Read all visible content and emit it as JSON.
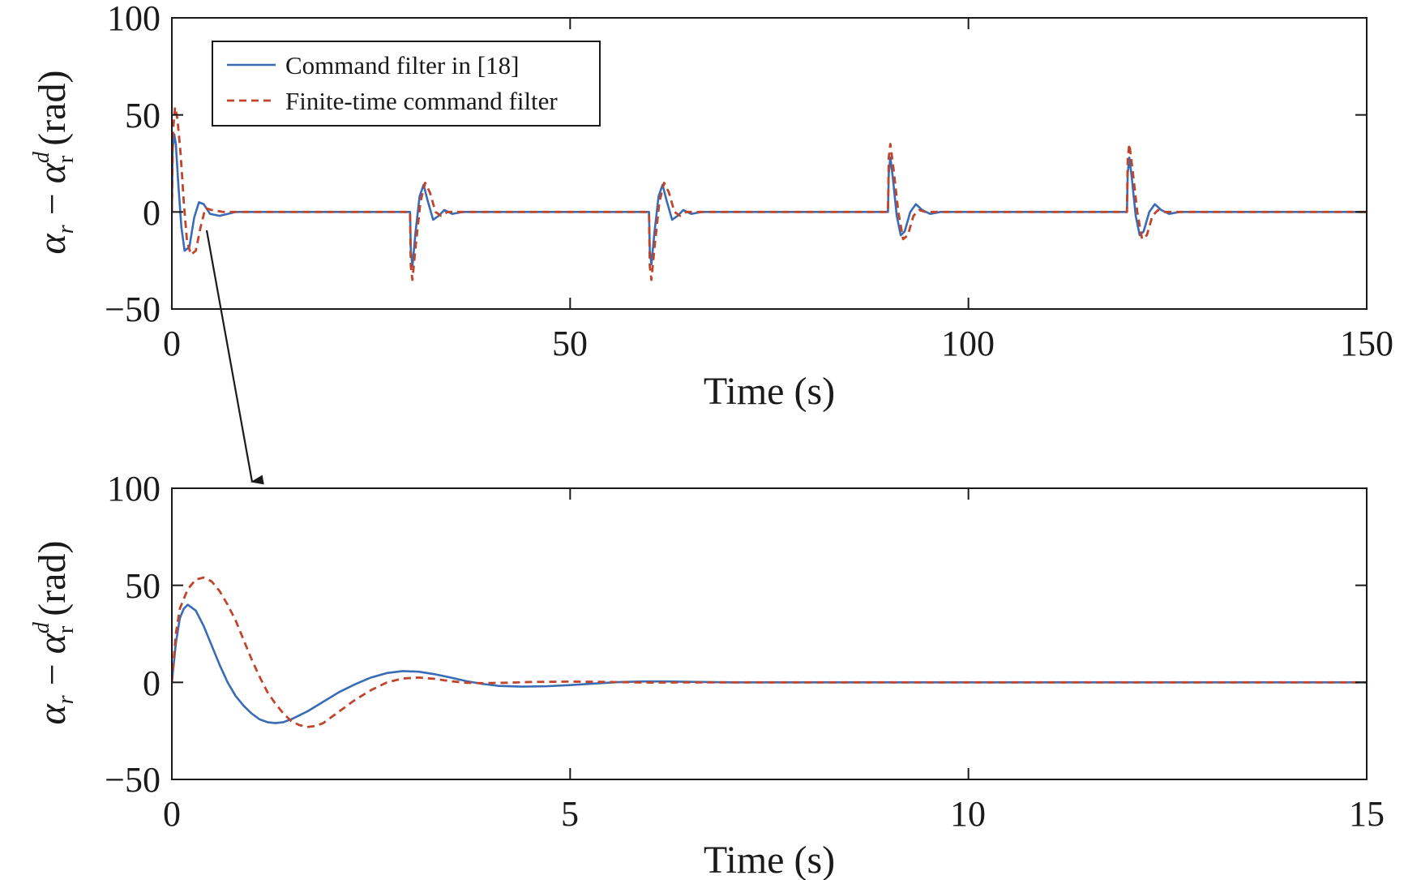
{
  "colors": {
    "series_1": "#3a6cb5",
    "series_2": "#c0452d",
    "axis": "#1a1a1a",
    "background": "#ffffff"
  },
  "chart_data": [
    {
      "type": "line",
      "xlabel": "Time (s)",
      "ylabel": {
        "symbol": "α",
        "sub1": "r",
        "minus": " − ",
        "sup": "d",
        "sub2": "r",
        "unit": " (rad)"
      },
      "xlim": [
        0,
        150
      ],
      "ylim": [
        -50,
        100
      ],
      "xticks": [
        0,
        50,
        100,
        150
      ],
      "xtick_labels": [
        "0",
        "50",
        "100",
        "150"
      ],
      "yticks": [
        -50,
        0,
        50,
        100
      ],
      "ytick_labels": [
        "−50",
        "0",
        "50",
        "100"
      ],
      "grid": false,
      "legend_position": "top-left",
      "series": [
        {
          "name": "Command filter in [18]",
          "style": "solid",
          "x": [
            0,
            0.1,
            0.3,
            0.5,
            0.8,
            1.2,
            1.6,
            2.2,
            2.8,
            3.4,
            4,
            4.8,
            6,
            8,
            29.9,
            30,
            30.2,
            30.6,
            31.1,
            31.6,
            32.1,
            32.8,
            33.5,
            34.2,
            35.2,
            36.5,
            38,
            59.9,
            60,
            60.2,
            60.6,
            61.1,
            61.6,
            62.1,
            62.8,
            63.5,
            64.2,
            65.2,
            66.5,
            68,
            89.9,
            90,
            90.2,
            90.5,
            91,
            91.5,
            92,
            92.7,
            93.4,
            94.2,
            95.2,
            96.5,
            98,
            119.9,
            120,
            120.2,
            120.5,
            121,
            121.5,
            122,
            122.7,
            123.4,
            124.2,
            125.2,
            126.5,
            128,
            150
          ],
          "y": [
            0,
            32,
            40,
            35,
            15,
            -8,
            -20,
            -18,
            -3,
            5,
            4,
            -1,
            -2,
            0,
            0,
            -20,
            -28,
            -10,
            8,
            14,
            6,
            -4,
            -2,
            1,
            -1,
            0,
            0,
            0,
            -20,
            -27,
            -10,
            8,
            14,
            6,
            -4,
            -2,
            1,
            -1,
            0,
            0,
            0,
            20,
            28,
            18,
            -2,
            -12,
            -10,
            0,
            4,
            1,
            -1,
            0,
            0,
            0,
            20,
            28,
            18,
            -2,
            -12,
            -10,
            0,
            4,
            1,
            -1,
            0,
            0,
            0
          ]
        },
        {
          "name": "Finite-time command filter",
          "style": "dashed",
          "x": [
            0,
            0.15,
            0.4,
            0.7,
            1.1,
            1.5,
            1.9,
            2.4,
            3,
            3.6,
            4.2,
            5,
            6.5,
            8,
            29.9,
            30,
            30.2,
            30.6,
            31.2,
            31.8,
            32.4,
            33.1,
            33.8,
            34.6,
            36,
            38,
            59.9,
            60,
            60.2,
            60.6,
            61.2,
            61.8,
            62.4,
            63.1,
            63.8,
            64.6,
            66,
            68,
            89.9,
            90,
            90.2,
            90.6,
            91.2,
            91.8,
            92.4,
            93.1,
            93.8,
            94.6,
            96,
            98,
            119.9,
            120,
            120.2,
            120.6,
            121.2,
            121.8,
            122.4,
            123.1,
            123.8,
            124.6,
            126,
            128,
            150
          ],
          "y": [
            0,
            42,
            54,
            48,
            30,
            5,
            -15,
            -22,
            -20,
            -8,
            2,
            1,
            0,
            0,
            0,
            -28,
            -35,
            -18,
            5,
            15,
            10,
            0,
            -2,
            0,
            0,
            0,
            0,
            -28,
            -35,
            -18,
            5,
            15,
            10,
            0,
            -2,
            0,
            0,
            0,
            0,
            28,
            35,
            22,
            0,
            -14,
            -12,
            -2,
            1,
            0,
            0,
            0,
            0,
            28,
            35,
            22,
            0,
            -14,
            -12,
            -2,
            1,
            0,
            0,
            0,
            0
          ]
        }
      ]
    },
    {
      "type": "line",
      "xlabel": "Time (s)",
      "ylabel": {
        "symbol": "α",
        "sub1": "r",
        "minus": " − ",
        "sup": "d",
        "sub2": "r",
        "unit": " (rad)"
      },
      "xlim": [
        0,
        15
      ],
      "ylim": [
        -50,
        100
      ],
      "xticks": [
        0,
        5,
        10,
        15
      ],
      "xtick_labels": [
        "0",
        "5",
        "10",
        "15"
      ],
      "yticks": [
        -50,
        0,
        50,
        100
      ],
      "ytick_labels": [
        "−50",
        "0",
        "50",
        "100"
      ],
      "grid": false,
      "series": [
        {
          "name": "Command filter in [18]",
          "style": "solid",
          "x": [
            0,
            0.05,
            0.1,
            0.15,
            0.2,
            0.3,
            0.4,
            0.5,
            0.6,
            0.7,
            0.8,
            0.9,
            1.0,
            1.1,
            1.2,
            1.3,
            1.4,
            1.5,
            1.7,
            1.9,
            2.1,
            2.3,
            2.5,
            2.7,
            2.9,
            3.1,
            3.3,
            3.5,
            3.7,
            3.9,
            4.1,
            4.4,
            4.7,
            5.0,
            5.3,
            5.6,
            5.9,
            6.2,
            6.6,
            7,
            8,
            10,
            12,
            15
          ],
          "y": [
            0,
            20,
            33,
            38,
            40,
            37,
            29,
            19,
            9,
            0,
            -7,
            -12,
            -16,
            -19,
            -20.5,
            -21,
            -20.5,
            -19,
            -15,
            -10,
            -5,
            -1,
            2.5,
            4.8,
            5.8,
            5.5,
            4.2,
            2.5,
            0.6,
            -0.8,
            -1.8,
            -2.2,
            -2.0,
            -1.4,
            -0.6,
            0.1,
            0.5,
            0.5,
            0.2,
            0,
            0,
            0,
            0,
            0
          ]
        },
        {
          "name": "Finite-time command filter",
          "style": "dashed",
          "x": [
            0,
            0.05,
            0.1,
            0.2,
            0.3,
            0.4,
            0.5,
            0.6,
            0.7,
            0.8,
            0.9,
            1.0,
            1.1,
            1.2,
            1.3,
            1.4,
            1.5,
            1.6,
            1.7,
            1.8,
            1.9,
            2.0,
            2.1,
            2.3,
            2.5,
            2.7,
            2.9,
            3.1,
            3.3,
            3.5,
            3.7,
            3.9,
            4.2,
            4.5,
            5,
            5.5,
            6,
            6.5,
            7,
            8,
            10,
            12,
            15
          ],
          "y": [
            0,
            25,
            38,
            48,
            53,
            54,
            52,
            47,
            40,
            32,
            22,
            12,
            3,
            -5,
            -11,
            -16,
            -20,
            -22,
            -23,
            -22.5,
            -21,
            -18,
            -15,
            -9,
            -4,
            0,
            2,
            2.5,
            1.8,
            0.6,
            -0.2,
            -0.4,
            -0.2,
            0.2,
            0.4,
            0.2,
            -0.1,
            0,
            0,
            0,
            0,
            0,
            0
          ]
        }
      ]
    }
  ]
}
